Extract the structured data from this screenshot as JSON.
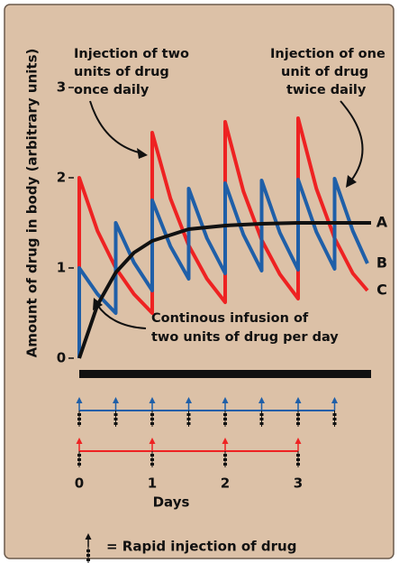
{
  "chart_data": {
    "type": "line",
    "xlabel": "Days",
    "ylabel": "Amount of drug in body (arbitrary units)",
    "xlim": [
      0,
      4
    ],
    "ylim": [
      0,
      3
    ],
    "xticks": [
      0,
      1,
      2,
      3
    ],
    "yticks": [
      0,
      1,
      2,
      3
    ],
    "series": [
      {
        "name": "A",
        "color": "#111111",
        "x": [
          0,
          0.25,
          0.5,
          0.75,
          1,
          1.5,
          2,
          2.5,
          3,
          3.5,
          4
        ],
        "values": [
          0,
          0.59,
          0.95,
          1.17,
          1.3,
          1.43,
          1.47,
          1.49,
          1.5,
          1.5,
          1.5
        ]
      },
      {
        "name": "B",
        "color": "#1f5fa8",
        "x": [
          0,
          0,
          0.25,
          0.5,
          0.5,
          0.75,
          1,
          1,
          1.25,
          1.5,
          1.5,
          1.75,
          2,
          2,
          2.25,
          2.5,
          2.5,
          2.75,
          3,
          3,
          3.25,
          3.5,
          3.5,
          3.75,
          3.95
        ],
        "values": [
          0,
          1,
          0.71,
          0.5,
          1.5,
          1.06,
          0.75,
          1.75,
          1.24,
          0.88,
          1.88,
          1.33,
          0.94,
          1.94,
          1.37,
          0.97,
          1.97,
          1.39,
          0.98,
          1.98,
          1.4,
          0.99,
          1.99,
          1.41,
          1.05
        ]
      },
      {
        "name": "C",
        "color": "#ee2222",
        "x": [
          0,
          0,
          0.25,
          0.5,
          0.75,
          1,
          1,
          1.25,
          1.5,
          1.75,
          2,
          2,
          2.25,
          2.5,
          2.75,
          3,
          3,
          3.25,
          3.5,
          3.75,
          3.95
        ],
        "values": [
          0,
          2,
          1.41,
          1,
          0.71,
          0.5,
          2.5,
          1.77,
          1.25,
          0.88,
          0.62,
          2.62,
          1.85,
          1.31,
          0.93,
          0.66,
          2.66,
          1.88,
          1.33,
          0.94,
          0.75
        ]
      }
    ],
    "annotations": [
      [
        "Injection of two",
        "units of drug",
        "once daily"
      ],
      [
        "Injection of one",
        "unit of drug",
        "twice daily"
      ],
      [
        "Continous infusion of",
        "two units of drug per day"
      ]
    ],
    "legend_text": "= Rapid injection of drug"
  }
}
